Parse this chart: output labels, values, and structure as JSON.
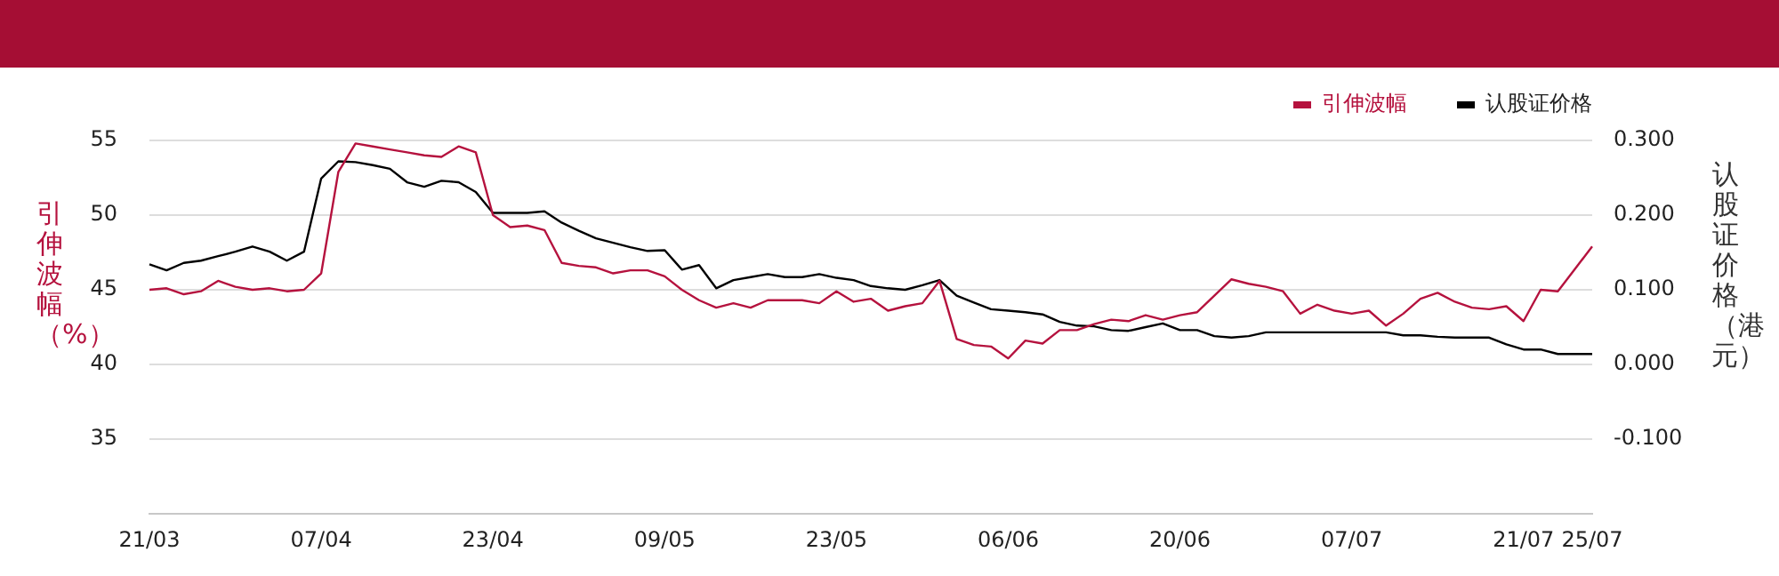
{
  "chart_data": {
    "type": "line",
    "ylabel": "引伸波幅（%）",
    "y2label": "认股证价格（港元）",
    "categories": [
      "21/03",
      null,
      null,
      null,
      null,
      null,
      null,
      null,
      null,
      null,
      "07/04",
      null,
      null,
      null,
      null,
      null,
      null,
      null,
      null,
      null,
      "23/04",
      null,
      null,
      null,
      null,
      null,
      null,
      null,
      null,
      null,
      "09/05",
      null,
      null,
      null,
      null,
      null,
      null,
      null,
      null,
      null,
      "23/05",
      null,
      null,
      null,
      null,
      null,
      null,
      null,
      null,
      null,
      "06/06",
      null,
      null,
      null,
      null,
      null,
      null,
      null,
      null,
      null,
      "20/06",
      null,
      null,
      null,
      null,
      null,
      null,
      null,
      null,
      null,
      "07/07",
      null,
      null,
      null,
      null,
      null,
      null,
      null,
      null,
      null,
      "21/07",
      null,
      null,
      null,
      "25/07"
    ],
    "series": [
      {
        "name": "引伸波幅",
        "color": "#b5123e",
        "values": [
          45.0,
          45.1,
          44.7,
          44.9,
          45.6,
          45.2,
          45.0,
          45.1,
          44.9,
          45.0,
          46.1,
          52.9,
          54.8,
          54.6,
          54.4,
          54.2,
          54.0,
          53.9,
          54.6,
          54.2,
          50.0,
          49.2,
          49.3,
          49.0,
          46.8,
          46.6,
          46.5,
          46.1,
          46.3,
          46.3,
          45.9,
          45.0,
          44.3,
          43.8,
          44.1,
          43.8,
          44.3,
          44.3,
          44.3,
          44.1,
          44.9,
          44.2,
          44.4,
          43.6,
          43.9,
          44.1,
          45.6,
          41.7,
          41.3,
          41.2,
          40.4,
          41.6,
          41.4,
          42.3,
          42.3,
          42.7,
          43.0,
          42.9,
          43.3,
          43.0,
          43.3,
          43.5,
          44.6,
          45.7,
          45.4,
          45.2,
          44.9,
          43.4,
          44.0,
          43.6,
          43.4,
          43.6,
          42.6,
          43.4,
          44.4,
          44.8,
          44.2,
          43.8,
          43.7,
          43.9,
          42.9,
          45.0,
          44.9,
          46.4,
          47.9
        ]
      },
      {
        "name": "认股证价格",
        "color": "#000000",
        "axis": "y2",
        "values": [
          0.134,
          0.126,
          0.136,
          0.139,
          0.145,
          0.151,
          0.158,
          0.151,
          0.139,
          0.151,
          0.249,
          0.272,
          0.271,
          0.267,
          0.262,
          0.244,
          0.238,
          0.246,
          0.244,
          0.231,
          0.203,
          0.203,
          0.203,
          0.205,
          0.19,
          0.179,
          0.169,
          0.163,
          0.157,
          0.152,
          0.153,
          0.127,
          0.133,
          0.102,
          0.113,
          0.117,
          0.121,
          0.117,
          0.117,
          0.121,
          0.116,
          0.113,
          0.105,
          0.102,
          0.1,
          0.106,
          0.113,
          0.092,
          0.083,
          0.074,
          0.072,
          0.07,
          0.067,
          0.057,
          0.052,
          0.051,
          0.046,
          0.045,
          0.05,
          0.055,
          0.046,
          0.046,
          0.038,
          0.036,
          0.038,
          0.043,
          0.043,
          0.043,
          0.043,
          0.043,
          0.043,
          0.043,
          0.043,
          0.039,
          0.039,
          0.037,
          0.036,
          0.036,
          0.036,
          0.027,
          0.02,
          0.02,
          0.014,
          0.014,
          0.014
        ]
      }
    ],
    "ylim": [
      30,
      55
    ],
    "yticks": [
      35,
      40,
      45,
      50,
      55
    ],
    "y2lim": [
      -0.2,
      0.3
    ],
    "y2ticks": [
      {
        "value": -0.1,
        "label": "-0.100"
      },
      {
        "value": 0,
        "label": "0.000"
      },
      {
        "value": 0.1,
        "label": "0.100"
      },
      {
        "value": 0.2,
        "label": "0.200"
      },
      {
        "value": 0.3,
        "label": "0.300"
      }
    ],
    "grid": "y",
    "legend": "top right",
    "marker": "none",
    "line_style": "solid"
  }
}
